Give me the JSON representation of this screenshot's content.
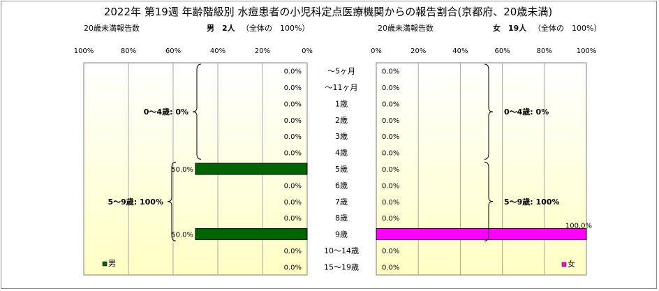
{
  "chart_data": {
    "type": "bar",
    "orientation": "horizontal",
    "title": "2022年 第19週 年齢階級別 水痘患者の小児科定点医療機関からの報告割合(京都府、20歳未満)",
    "categories": [
      "～5ヶ月",
      "～11ヶ月",
      "1歳",
      "2歳",
      "3歳",
      "4歳",
      "5歳",
      "6歳",
      "7歳",
      "8歳",
      "9歳",
      "10～14歳",
      "15～19歳"
    ],
    "xlim": [
      0,
      100
    ],
    "tick_labels": [
      "0%",
      "20%",
      "40%",
      "60%",
      "80%",
      "100%"
    ],
    "grid": true,
    "series": [
      {
        "name": "男",
        "header_label": "20歳未満報告数",
        "header_count": "男　2人",
        "header_share": "（全体の　100%）",
        "color": "#006400",
        "direction": "right-to-left",
        "values": [
          0,
          0,
          0,
          0,
          0,
          0,
          50,
          0,
          0,
          0,
          50,
          0,
          0
        ],
        "value_labels": [
          "0.0%",
          "0.0%",
          "0.0%",
          "0.0%",
          "0.0%",
          "0.0%",
          "50.0%",
          "0.0%",
          "0.0%",
          "0.0%",
          "50.0%",
          "0.0%",
          "0.0%"
        ],
        "group_labels": [
          "0～4歳: 0%",
          "5～9歳: 100%"
        ],
        "legend_label": "男",
        "legend_position": "bottom-left"
      },
      {
        "name": "女",
        "header_label": "20歳未満報告数",
        "header_count": "女　19人",
        "header_share": "（全体の　100%）",
        "color": "#ff00ff",
        "direction": "left-to-right",
        "values": [
          0,
          0,
          0,
          0,
          0,
          0,
          0,
          0,
          0,
          0,
          100,
          0,
          0
        ],
        "value_labels": [
          "0.0%",
          "0.0%",
          "0.0%",
          "0.0%",
          "0.0%",
          "0.0%",
          "0.0%",
          "0.0%",
          "0.0%",
          "0.0%",
          "100.0%",
          "0.0%",
          "0.0%"
        ],
        "group_labels": [
          "0～4歳: 0%",
          "5～9歳: 100%"
        ],
        "legend_label": "女",
        "legend_position": "bottom-right"
      }
    ]
  }
}
